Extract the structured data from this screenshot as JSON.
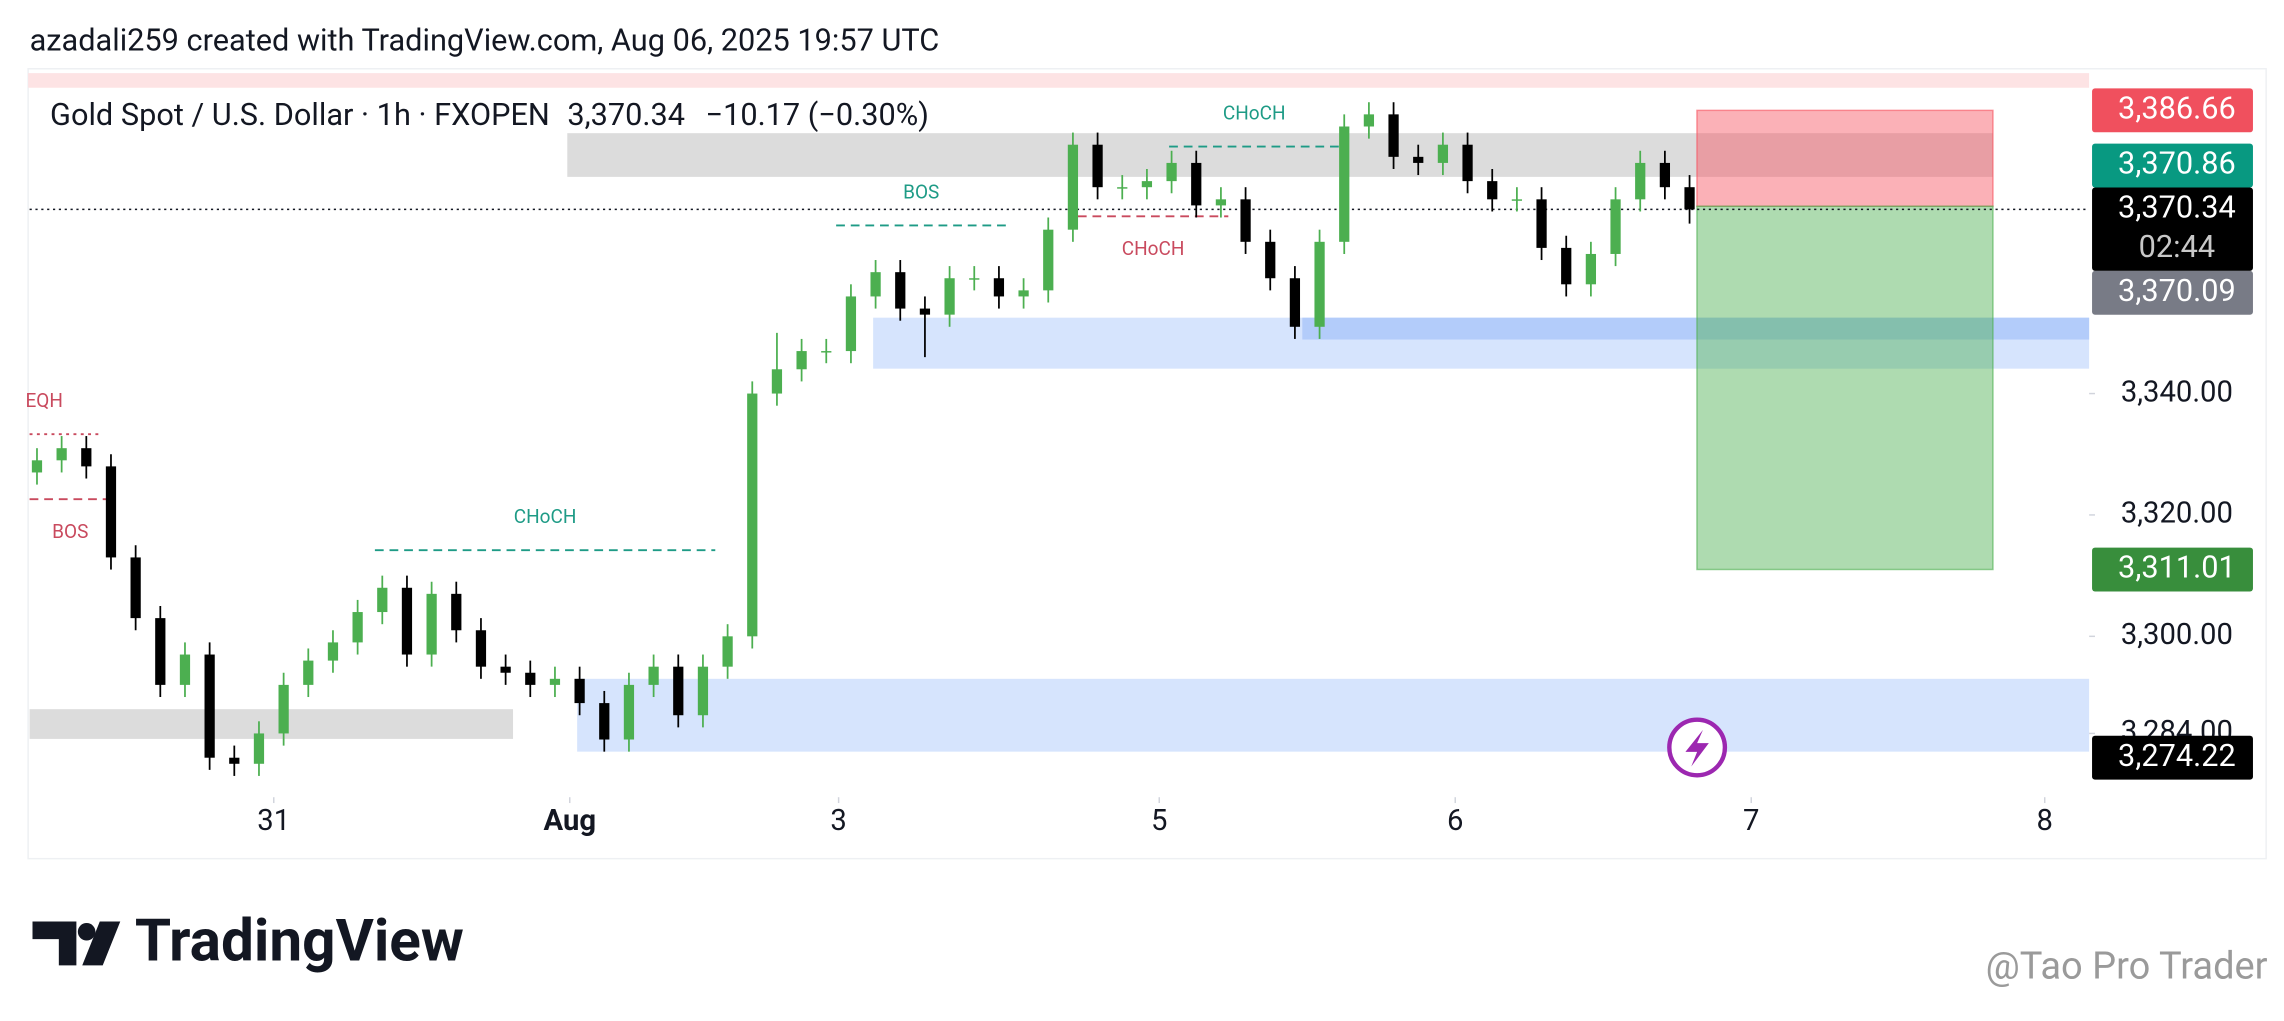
{
  "header": {
    "credit": "azadali259 created with TradingView.com, Aug 06, 2025 19:57 UTC"
  },
  "chart_data": {
    "type": "candlestick",
    "title": "Gold Spot / U.S. Dollar · 1h · FXOPEN",
    "last_price": {
      "value": 3370.34,
      "label": "3,370.34"
    },
    "change": "−10.17 (−0.30%)",
    "open": [
      3327,
      3329,
      3331,
      3328,
      3313,
      3303,
      3292,
      3297,
      3280,
      3279,
      3284,
      3292,
      3296,
      3299,
      3304,
      3308,
      3297,
      3307,
      3301,
      3295,
      3294,
      3292,
      3293,
      3289,
      3283,
      3292,
      3295,
      3287,
      3295,
      3300,
      3340,
      3344,
      3347,
      3347,
      3356,
      3360,
      3354,
      3353,
      3359,
      3359,
      3356,
      3357,
      3367,
      3381,
      3374,
      3374,
      3375,
      3378,
      3371,
      3372,
      3365,
      3359,
      3351,
      3365,
      3384,
      3386,
      3379,
      3378,
      3381,
      3375,
      3372,
      3372,
      3364,
      3358,
      3363,
      3372,
      3378,
      3374
    ],
    "high": [
      3331,
      3333,
      3333,
      3330,
      3315,
      3305,
      3299,
      3299,
      3282,
      3286,
      3294,
      3298,
      3301,
      3306,
      3310,
      3310,
      3309,
      3309,
      3303,
      3297,
      3296,
      3295,
      3295,
      3291,
      3294,
      3297,
      3297,
      3297,
      3302,
      3342,
      3350,
      3349,
      3349,
      3358,
      3362,
      3362,
      3356,
      3361,
      3361,
      3361,
      3359,
      3369,
      3383,
      3383,
      3376,
      3377,
      3380,
      3380,
      3374,
      3374,
      3367,
      3361,
      3367,
      3386,
      3388,
      3388,
      3381,
      3383,
      3383,
      3377,
      3374,
      3374,
      3366,
      3365,
      3374,
      3380,
      3380,
      3376
    ],
    "low": [
      3325,
      3327,
      3326,
      3311,
      3301,
      3290,
      3290,
      3278,
      3277,
      3277,
      3282,
      3290,
      3294,
      3297,
      3302,
      3295,
      3295,
      3299,
      3293,
      3292,
      3290,
      3290,
      3287,
      3281,
      3281,
      3290,
      3285,
      3285,
      3293,
      3298,
      3338,
      3342,
      3345,
      3345,
      3354,
      3352,
      3346,
      3351,
      3357,
      3354,
      3354,
      3355,
      3365,
      3372,
      3372,
      3372,
      3373,
      3369,
      3369,
      3363,
      3357,
      3349,
      3349,
      3363,
      3382,
      3377,
      3376,
      3376,
      3373,
      3370,
      3370,
      3362,
      3356,
      3356,
      3361,
      3370,
      3372,
      3368
    ],
    "close": [
      3329,
      3331,
      3328,
      3313,
      3303,
      3292,
      3297,
      3280,
      3279,
      3284,
      3292,
      3296,
      3299,
      3304,
      3308,
      3297,
      3307,
      3301,
      3295,
      3294,
      3292,
      3293,
      3289,
      3283,
      3292,
      3295,
      3287,
      3295,
      3300,
      3340,
      3344,
      3347,
      3347,
      3356,
      3360,
      3354,
      3353,
      3359,
      3359,
      3356,
      3357,
      3367,
      3381,
      3374,
      3374,
      3375,
      3378,
      3371,
      3372,
      3365,
      3359,
      3351,
      3365,
      3384,
      3386,
      3379,
      3378,
      3381,
      3375,
      3372,
      3372,
      3364,
      3358,
      3363,
      3372,
      3378,
      3374,
      3370.34
    ],
    "up_color": "#4caf50",
    "down_color": "#000000",
    "xlim": [
      -0.3,
      83.2
    ],
    "xticks": [
      {
        "value": 9.6,
        "label": "31"
      },
      {
        "value": 21.6,
        "label": "Aug"
      },
      {
        "value": 32.5,
        "label": "3"
      },
      {
        "value": 45.5,
        "label": "5"
      },
      {
        "value": 57.5,
        "label": "6"
      },
      {
        "value": 69.5,
        "label": "7"
      },
      {
        "value": 81.4,
        "label": "8"
      }
    ],
    "ylim": [
      3274.7,
      3389.9
    ],
    "yticks": [
      {
        "value": 3340,
        "label": "3,340.00"
      },
      {
        "value": 3320,
        "label": "3,320.00"
      },
      {
        "value": 3300,
        "label": "3,300.00"
      },
      {
        "value": 3284,
        "label": "3,284.00"
      }
    ],
    "zones": [
      {
        "y": [
          3375.7,
          3382.9
        ],
        "x": [
          21.5,
          79.3
        ],
        "color": "#dcdcdc"
      },
      {
        "y": [
          3283.1,
          3288.0
        ],
        "x": [
          -0.3,
          19.3
        ],
        "color": "#dcdcdc"
      },
      {
        "y": [
          3344.1,
          3352.5
        ],
        "x": [
          33.9,
          83.2
        ],
        "color": "#d6e4fd"
      },
      {
        "y": [
          3348.9,
          3352.5
        ],
        "x": [
          51.3,
          83.2
        ],
        "color": "#b3ccfa"
      },
      {
        "y": [
          3281.0,
          3293.0
        ],
        "x": [
          21.9,
          83.2
        ],
        "color": "#d6e4fd"
      }
    ],
    "structure": [
      {
        "label": "EQH",
        "value": 3333.3,
        "x": [
          -0.3,
          2.5
        ],
        "color": "#c94a5e",
        "style": "dotted"
      },
      {
        "label": "BOS",
        "value": 3322.6,
        "x": [
          -0.3,
          3.0
        ],
        "color": "#c94a5e",
        "style": "dashed"
      },
      {
        "label": "CHoCH",
        "value": 3314.2,
        "x": [
          13.7,
          27.5
        ],
        "color": "#1e9b86",
        "style": "dashed"
      },
      {
        "label": "BOS",
        "value": 3367.7,
        "x": [
          32.4,
          39.3
        ],
        "color": "#1e9b86",
        "style": "dashed"
      },
      {
        "label": "CHoCH",
        "value": 3369.2,
        "x": [
          42.2,
          48.3
        ],
        "color": "#c94a5e",
        "style": "dashed"
      },
      {
        "label": "CHoCH",
        "value": 3380.7,
        "x": [
          45.9,
          52.8
        ],
        "color": "#1e9b86",
        "style": "dashed"
      }
    ],
    "position": {
      "stop": 3386.66,
      "entry": 3370.86,
      "target": 3311.01,
      "x": [
        67.3,
        79.3
      ]
    },
    "price_labels": [
      {
        "value": 3386.66,
        "label": "3,386.66",
        "color": "#f0505e"
      },
      {
        "value": 3370.86,
        "label": "3,370.86",
        "color": "#089981"
      },
      {
        "value": 3370.34,
        "label": "3,370.34",
        "color": "#000000",
        "countdown": "02:44"
      },
      {
        "value": 3370.09,
        "label": "3,370.09",
        "color": "#787b86"
      },
      {
        "value": 3311.01,
        "label": "3,311.01",
        "color": "#388e3c"
      },
      {
        "value": 3274.22,
        "label": "3,274.22",
        "color": "#000000"
      }
    ]
  },
  "footer": {
    "brand": "TradingView",
    "watermark": "@Tao Pro Trader"
  }
}
